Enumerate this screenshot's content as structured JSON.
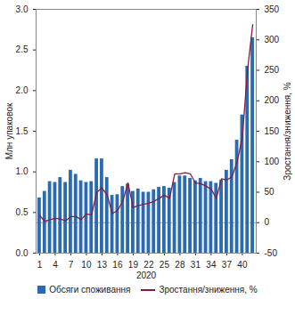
{
  "chart_data": {
    "type": "bar",
    "x_label": "2020",
    "y_label": "Млн упаковок",
    "y2_label": "Зростання/зниження, %",
    "x": [
      1,
      2,
      3,
      4,
      5,
      6,
      7,
      8,
      9,
      10,
      11,
      12,
      13,
      14,
      15,
      16,
      17,
      18,
      19,
      20,
      21,
      22,
      23,
      24,
      25,
      26,
      27,
      28,
      29,
      30,
      31,
      32,
      33,
      34,
      35,
      36,
      37,
      38,
      39,
      40,
      41,
      42
    ],
    "xticks": [
      1,
      4,
      7,
      10,
      13,
      16,
      19,
      22,
      25,
      28,
      31,
      34,
      37,
      40
    ],
    "ylim": [
      0,
      3
    ],
    "yticks": [
      {
        "value": 0,
        "label": "0.0"
      },
      {
        "value": 0.5,
        "label": "0.5"
      },
      {
        "value": 1,
        "label": "1.0"
      },
      {
        "value": 1.5,
        "label": "1.5"
      },
      {
        "value": 2,
        "label": "2.0"
      },
      {
        "value": 2.5,
        "label": "2.5"
      },
      {
        "value": 3,
        "label": "3.0"
      }
    ],
    "y2lim": [
      -50,
      350
    ],
    "y2ticks": [
      -50,
      0,
      50,
      100,
      150,
      200,
      250,
      300,
      350
    ],
    "legend": "bottom",
    "series": [
      {
        "name": "Обсяги споживання",
        "type": "bar",
        "color": "#2a6ab3",
        "values": [
          0.68,
          0.76,
          0.88,
          0.87,
          0.93,
          0.87,
          1.02,
          0.97,
          0.89,
          0.87,
          0.88,
          1.16,
          1.16,
          0.93,
          0.71,
          0.72,
          0.82,
          0.85,
          0.76,
          0.79,
          0.75,
          0.75,
          0.78,
          0.81,
          0.82,
          0.8,
          0.87,
          0.95,
          0.95,
          0.92,
          0.89,
          0.92,
          0.88,
          0.88,
          0.86,
          0.9,
          1.02,
          1.15,
          1.39,
          1.7,
          2.3,
          2.65
        ]
      },
      {
        "name": "Зростання/зниження, %",
        "type": "line",
        "axis": "y2",
        "color": "#8b1a3a",
        "values": [
          12,
          2,
          5,
          7,
          6,
          3,
          10,
          10,
          5,
          14,
          13,
          50,
          57,
          45,
          15,
          20,
          35,
          65,
          25,
          28,
          30,
          32,
          35,
          40,
          45,
          40,
          80,
          80,
          82,
          80,
          65,
          64,
          60,
          55,
          40,
          72,
          70,
          75,
          100,
          140,
          250,
          325
        ]
      }
    ]
  }
}
